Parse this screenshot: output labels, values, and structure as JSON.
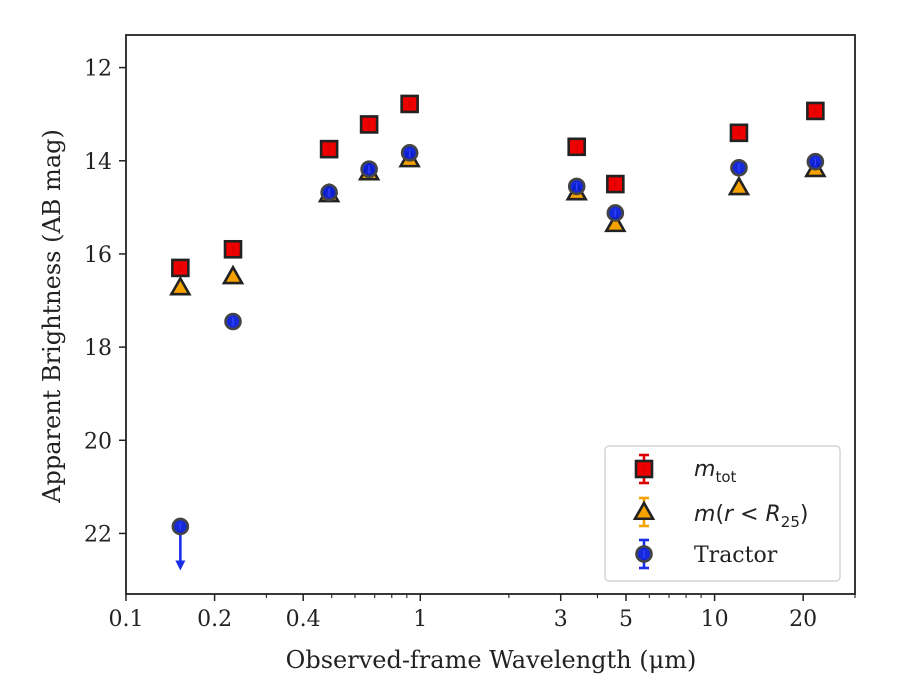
{
  "chart_data": {
    "type": "scatter",
    "xlabel": "Observed-frame Wavelength (μm)",
    "ylabel": "Apparent Brightness (AB mag)",
    "x_scale": "log",
    "xlim": [
      0.1,
      30
    ],
    "ylim": [
      23.3,
      11.3
    ],
    "y_inverted": true,
    "x_ticks": [
      {
        "value": 0.1,
        "label": "0.1"
      },
      {
        "value": 0.2,
        "label": "0.2"
      },
      {
        "value": 0.4,
        "label": "0.4"
      },
      {
        "value": 1,
        "label": "1"
      },
      {
        "value": 3,
        "label": "3"
      },
      {
        "value": 5,
        "label": "5"
      },
      {
        "value": 10,
        "label": "10"
      },
      {
        "value": 20,
        "label": "20"
      }
    ],
    "y_ticks": [
      {
        "value": 12,
        "label": "12"
      },
      {
        "value": 14,
        "label": "14"
      },
      {
        "value": 16,
        "label": "16"
      },
      {
        "value": 18,
        "label": "18"
      },
      {
        "value": 20,
        "label": "20"
      },
      {
        "value": 22,
        "label": "22"
      }
    ],
    "grid": false,
    "legend_position": "bottom-right",
    "series": [
      {
        "name": "m_tot",
        "marker": "square",
        "fill": "#ee0000",
        "edge": "#222222",
        "errcolor": "#dd0000",
        "points": [
          {
            "x": 0.153,
            "y": 16.3
          },
          {
            "x": 0.231,
            "y": 15.9
          },
          {
            "x": 0.49,
            "y": 13.75
          },
          {
            "x": 0.67,
            "y": 13.22
          },
          {
            "x": 0.92,
            "y": 12.78
          },
          {
            "x": 3.4,
            "y": 13.7
          },
          {
            "x": 4.6,
            "y": 14.5
          },
          {
            "x": 12.1,
            "y": 13.4
          },
          {
            "x": 22.0,
            "y": 12.93
          }
        ]
      },
      {
        "name": "m(r < R_25)",
        "marker": "triangle",
        "fill": "#f5a200",
        "edge": "#222222",
        "errcolor": "#f5a200",
        "points": [
          {
            "x": 0.153,
            "y": 16.72
          },
          {
            "x": 0.231,
            "y": 16.48
          },
          {
            "x": 0.49,
            "y": 14.72
          },
          {
            "x": 0.67,
            "y": 14.25
          },
          {
            "x": 0.92,
            "y": 13.97
          },
          {
            "x": 3.4,
            "y": 14.68
          },
          {
            "x": 4.6,
            "y": 15.36
          },
          {
            "x": 12.1,
            "y": 14.57
          },
          {
            "x": 22.0,
            "y": 14.18
          }
        ]
      },
      {
        "name": "Tractor",
        "marker": "circle",
        "fill": "#0b1fd8",
        "edge": "#444444",
        "errcolor": "#1a2ee8",
        "points": [
          {
            "x": 0.153,
            "y": 21.85,
            "upper_limit": true
          },
          {
            "x": 0.231,
            "y": 17.45
          },
          {
            "x": 0.49,
            "y": 14.68
          },
          {
            "x": 0.67,
            "y": 14.18
          },
          {
            "x": 0.92,
            "y": 13.83
          },
          {
            "x": 3.4,
            "y": 14.55
          },
          {
            "x": 4.6,
            "y": 15.12
          },
          {
            "x": 12.1,
            "y": 14.15
          },
          {
            "x": 22.0,
            "y": 14.02
          }
        ]
      }
    ]
  },
  "legend": {
    "mtot_base": "m",
    "mtot_sub": "tot",
    "mr_prefix": "m",
    "mr_paren_open": "(",
    "mr_var": "r",
    "mr_lt": " < ",
    "mr_R": "R",
    "mr_sub": "25",
    "mr_paren_close": ")",
    "tractor": "Tractor"
  }
}
